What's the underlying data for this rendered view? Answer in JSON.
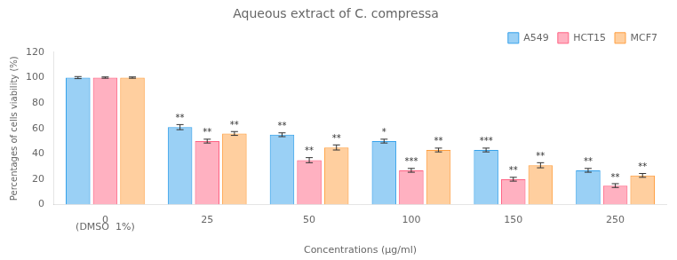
{
  "chart_data": {
    "type": "bar",
    "title": "Aqueous extract of C. compressa",
    "xlabel": "Concentrations (μg/ml)",
    "ylabel": "Percentages of cells viability (%)",
    "categories": [
      "0",
      "25",
      "50",
      "100",
      "150",
      "250"
    ],
    "series": [
      {
        "name": "A549",
        "values": [
          100,
          61,
          55,
          50,
          43,
          27
        ],
        "errors": [
          0.8,
          2.0,
          1.5,
          1.5,
          1.5,
          1.5
        ],
        "annotations": [
          null,
          "**",
          "**",
          "*",
          "***",
          "**"
        ]
      },
      {
        "name": "HCT15",
        "values": [
          100,
          50,
          35,
          27,
          20,
          15
        ],
        "errors": [
          0.5,
          1.5,
          2.0,
          1.5,
          1.5,
          1.5
        ],
        "annotations": [
          null,
          "**",
          "**",
          "***",
          "**",
          "**"
        ]
      },
      {
        "name": "MCF7",
        "values": [
          100,
          56,
          45,
          43,
          31,
          23
        ],
        "errors": [
          0.5,
          1.5,
          2.0,
          1.5,
          2.0,
          1.5
        ],
        "annotations": [
          null,
          "**",
          "**",
          "**",
          "**",
          "**"
        ]
      }
    ],
    "annotations": [
      {
        "text": "(DMSO  1%)",
        "category": "0"
      }
    ],
    "ylim": [
      0,
      120
    ],
    "yticks": [
      0,
      20,
      40,
      60,
      80,
      100,
      120
    ],
    "grid": false,
    "legend": "upper right"
  }
}
